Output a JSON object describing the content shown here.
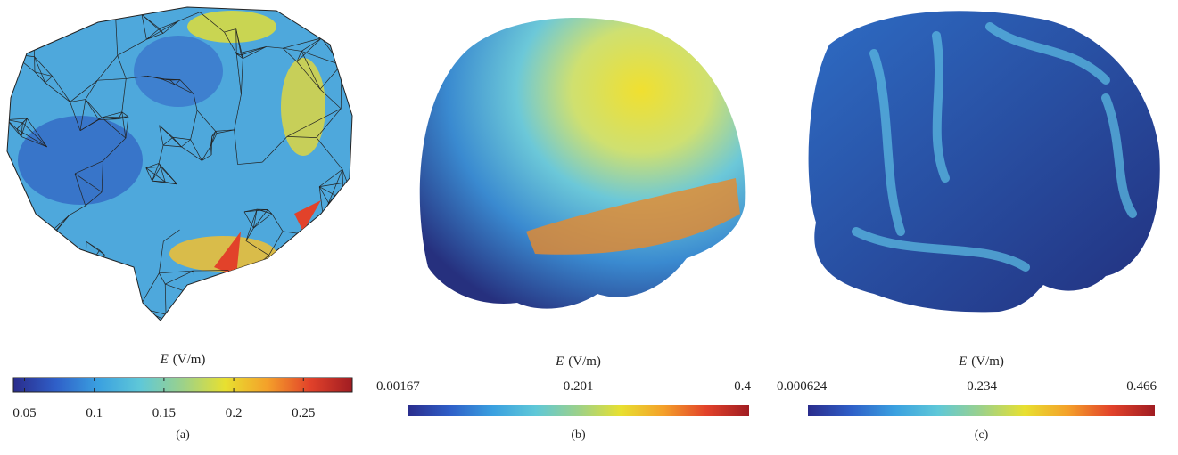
{
  "figure": {
    "colormap": [
      "#2a2c8c",
      "#2f5fc8",
      "#3aa0e0",
      "#5fc8d8",
      "#9cd18a",
      "#e8e030",
      "#f4a02a",
      "#e2422a",
      "#a01c22"
    ],
    "panels": [
      {
        "colorbar_label": {
          "symbol": "E",
          "unit": "(V/m)"
        },
        "clim": [
          0.042,
          0.285
        ],
        "ticks": [
          0.05,
          0.1,
          0.15,
          0.2,
          0.25
        ],
        "tick_marks": true,
        "caption": "(a)"
      },
      {
        "colorbar_label": {
          "symbol": "E",
          "unit": "(V/m)"
        },
        "clim": [
          0.00167,
          0.4
        ],
        "ticks": [
          0.00167,
          0.201,
          0.4
        ],
        "tick_marks": false,
        "caption": "(b)"
      },
      {
        "colorbar_label": {
          "symbol": "E",
          "unit": "(V/m)"
        },
        "clim": [
          0.000624,
          0.466
        ],
        "ticks": [
          0.000624,
          0.234,
          0.466
        ],
        "tick_marks": false,
        "caption": "(c)"
      }
    ]
  }
}
